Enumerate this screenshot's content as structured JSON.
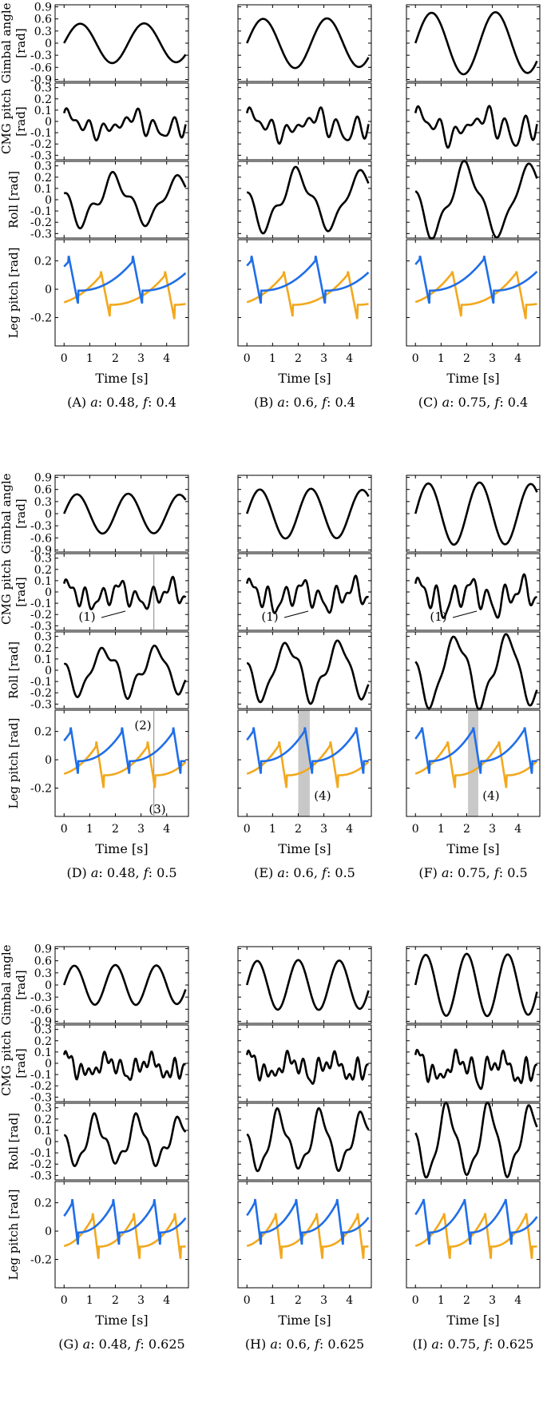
{
  "colors": {
    "black": "#000000",
    "blue": "#1f6ee8",
    "orange": "#f2a81d",
    "band": "#c8c8c8",
    "vline": "#999999"
  },
  "row_ylabels": [
    [
      "Gimbal angle",
      "[rad]"
    ],
    [
      "CMG pitch",
      "[rad]"
    ],
    [
      "Roll [rad]"
    ],
    [
      "Leg pitch [rad]"
    ]
  ],
  "ytick_labels": [
    [
      "0.9",
      "0.6",
      "0.3",
      "0",
      "-0.3",
      "-0.6",
      "-0.9"
    ],
    [
      "0.3",
      "0.2",
      "0.1",
      "0",
      "-0.1",
      "-0.2",
      "-0.3"
    ],
    [
      "0.3",
      "0.2",
      "0.1",
      "0",
      "-0.1",
      "-0.2",
      "-0.3"
    ],
    [
      "0.2",
      "0",
      "-0.2"
    ]
  ],
  "xtick_labels": [
    "0",
    "1",
    "2",
    "3",
    "4"
  ],
  "xlabel": "Time [s]",
  "chart_data": [
    {
      "id": "A",
      "type": "line",
      "caption_letter": "(A)",
      "a": "0.48",
      "f": "0.4",
      "amp": 0.48,
      "freq": 0.4
    },
    {
      "id": "B",
      "type": "line",
      "caption_letter": "(B)",
      "a": "0.6",
      "f": "0.4",
      "amp": 0.6,
      "freq": 0.4
    },
    {
      "id": "C",
      "type": "line",
      "caption_letter": "(C)",
      "a": "0.75",
      "f": "0.4",
      "amp": 0.75,
      "freq": 0.4
    },
    {
      "id": "D",
      "type": "line",
      "caption_letter": "(D)",
      "a": "0.48",
      "f": "0.5",
      "amp": 0.48,
      "freq": 0.5,
      "annotations": [
        "(1)",
        "(2)",
        "(3)"
      ],
      "marker_time": 3.5
    },
    {
      "id": "E",
      "type": "line",
      "caption_letter": "(E)",
      "a": "0.6",
      "f": "0.5",
      "amp": 0.6,
      "freq": 0.5,
      "annotations": [
        "(1)",
        "(4)"
      ],
      "band": [
        2.0,
        2.45
      ]
    },
    {
      "id": "F",
      "type": "line",
      "caption_letter": "(F)",
      "a": "0.75",
      "f": "0.5",
      "amp": 0.75,
      "freq": 0.5,
      "annotations": [
        "(1)",
        "(4)"
      ],
      "band": [
        2.05,
        2.45
      ]
    },
    {
      "id": "G",
      "type": "line",
      "caption_letter": "(G)",
      "a": "0.48",
      "f": "0.625",
      "amp": 0.48,
      "freq": 0.625
    },
    {
      "id": "H",
      "type": "line",
      "caption_letter": "(H)",
      "a": "0.6",
      "f": "0.625",
      "amp": 0.6,
      "freq": 0.625
    },
    {
      "id": "I",
      "type": "line",
      "caption_letter": "(I)",
      "a": "0.75",
      "f": "0.625",
      "amp": 0.75,
      "freq": 0.625
    }
  ],
  "axes": {
    "x_range": [
      -0.35,
      4.85
    ],
    "y_ranges": [
      [
        -0.95,
        0.95
      ],
      [
        -0.34,
        0.34
      ],
      [
        -0.34,
        0.34
      ],
      [
        -0.4,
        0.35
      ]
    ]
  },
  "series_colors": {
    "gimbal": "#000000",
    "cmg": "#000000",
    "roll": "#000000",
    "leg_left": "#1f6ee8",
    "leg_right": "#f2a81d"
  }
}
